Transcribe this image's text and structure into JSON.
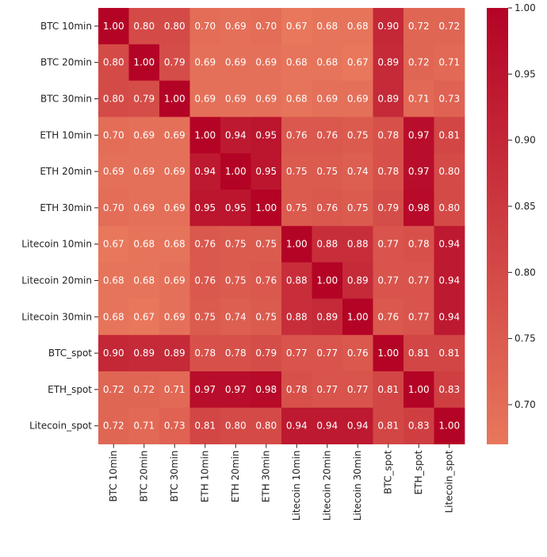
{
  "chart_data": {
    "type": "heatmap",
    "title": "",
    "xlabel": "",
    "ylabel": "",
    "rows": [
      "BTC 10min",
      "BTC 20min",
      "BTC 30min",
      "ETH 10min",
      "ETH 20min",
      "ETH 30min",
      "Litecoin 10min",
      "Litecoin 20min",
      "Litecoin 30min",
      "BTC_spot",
      "ETH_spot",
      "Litecoin_spot"
    ],
    "columns": [
      "BTC 10min",
      "BTC 20min",
      "BTC 30min",
      "ETH 10min",
      "ETH 20min",
      "ETH 30min",
      "Litecoin 10min",
      "Litecoin 20min",
      "Litecoin 30min",
      "BTC_spot",
      "ETH_spot",
      "Litecoin_spot"
    ],
    "values": [
      [
        1.0,
        0.8,
        0.8,
        0.7,
        0.69,
        0.7,
        0.67,
        0.68,
        0.68,
        0.9,
        0.72,
        0.72
      ],
      [
        0.8,
        1.0,
        0.79,
        0.69,
        0.69,
        0.69,
        0.68,
        0.68,
        0.67,
        0.89,
        0.72,
        0.71
      ],
      [
        0.8,
        0.79,
        1.0,
        0.69,
        0.69,
        0.69,
        0.68,
        0.69,
        0.69,
        0.89,
        0.71,
        0.73
      ],
      [
        0.7,
        0.69,
        0.69,
        1.0,
        0.94,
        0.95,
        0.76,
        0.76,
        0.75,
        0.78,
        0.97,
        0.81
      ],
      [
        0.69,
        0.69,
        0.69,
        0.94,
        1.0,
        0.95,
        0.75,
        0.75,
        0.74,
        0.78,
        0.97,
        0.8
      ],
      [
        0.7,
        0.69,
        0.69,
        0.95,
        0.95,
        1.0,
        0.75,
        0.76,
        0.75,
        0.79,
        0.98,
        0.8
      ],
      [
        0.67,
        0.68,
        0.68,
        0.76,
        0.75,
        0.75,
        1.0,
        0.88,
        0.88,
        0.77,
        0.78,
        0.94
      ],
      [
        0.68,
        0.68,
        0.69,
        0.76,
        0.75,
        0.76,
        0.88,
        1.0,
        0.89,
        0.77,
        0.77,
        0.94
      ],
      [
        0.68,
        0.67,
        0.69,
        0.75,
        0.74,
        0.75,
        0.88,
        0.89,
        1.0,
        0.76,
        0.77,
        0.94
      ],
      [
        0.9,
        0.89,
        0.89,
        0.78,
        0.78,
        0.79,
        0.77,
        0.77,
        0.76,
        1.0,
        0.81,
        0.81
      ],
      [
        0.72,
        0.72,
        0.71,
        0.97,
        0.97,
        0.98,
        0.78,
        0.77,
        0.77,
        0.81,
        1.0,
        0.83
      ],
      [
        0.72,
        0.71,
        0.73,
        0.81,
        0.8,
        0.8,
        0.94,
        0.94,
        0.94,
        0.81,
        0.83,
        1.0
      ]
    ],
    "value_format": "2 decimals",
    "colormap": "coolwarm",
    "color_range": [
      0.67,
      1.0
    ],
    "colorbar": {
      "placement": "right",
      "ticks": [
        "0.70",
        "0.75",
        "0.80",
        "0.85",
        "0.90",
        "0.95",
        "1.00"
      ]
    },
    "colors": {
      "low": "#E8775C",
      "high": "#B40426",
      "text": "#FFFFFF"
    },
    "grid": false,
    "legend": "colorbar-right"
  }
}
